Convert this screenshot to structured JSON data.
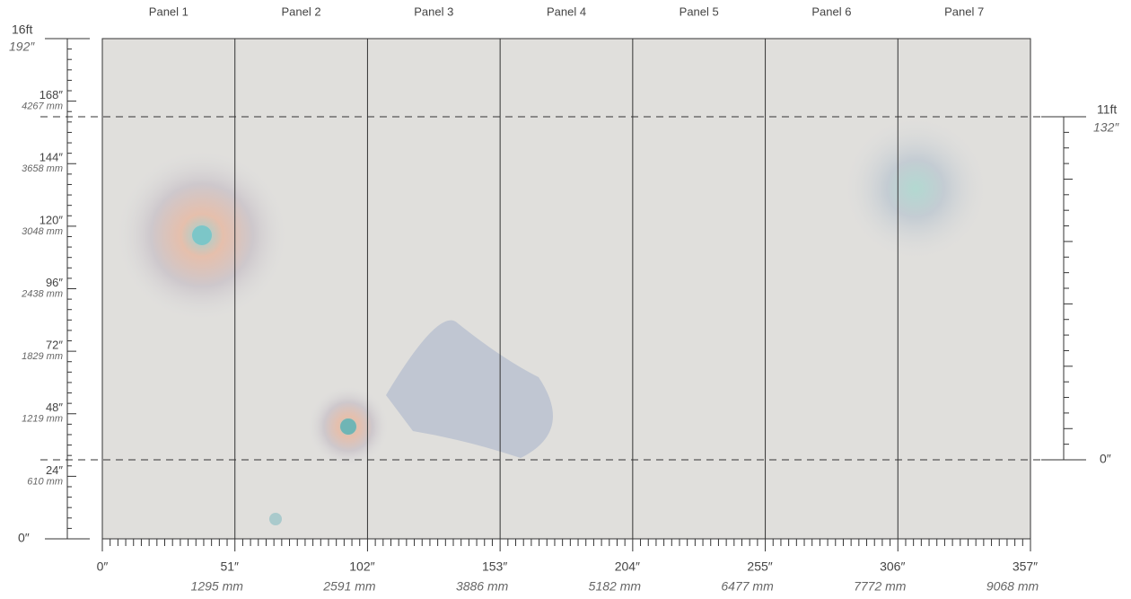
{
  "panels": [
    "Panel 1",
    "Panel 2",
    "Panel 3",
    "Panel 4",
    "Panel 5",
    "Panel 6",
    "Panel 7"
  ],
  "left_ruler": {
    "top_ft": "16ft",
    "top_in": "192″",
    "marks": [
      {
        "in": "168″",
        "mm": "4267 mm"
      },
      {
        "in": "144″",
        "mm": "3658 mm"
      },
      {
        "in": "120″",
        "mm": "3048 mm"
      },
      {
        "in": "96″",
        "mm": "2438 mm"
      },
      {
        "in": "72″",
        "mm": "1829 mm"
      },
      {
        "in": "48″",
        "mm": "1219 mm"
      },
      {
        "in": "24″",
        "mm": "610 mm"
      }
    ],
    "bottom": "0″"
  },
  "bottom_ruler": {
    "start": "0″",
    "marks": [
      {
        "in": "51″",
        "mm": "1295 mm"
      },
      {
        "in": "102″",
        "mm": "2591 mm"
      },
      {
        "in": "153″",
        "mm": "3886 mm"
      },
      {
        "in": "204″",
        "mm": "5182 mm"
      },
      {
        "in": "255″",
        "mm": "6477 mm"
      },
      {
        "in": "306″",
        "mm": "7772 mm"
      },
      {
        "in": "357″",
        "mm": "9068 mm"
      }
    ]
  },
  "right_ruler": {
    "top_ft": "11ft",
    "top_in": "132″",
    "bottom": "0″"
  }
}
